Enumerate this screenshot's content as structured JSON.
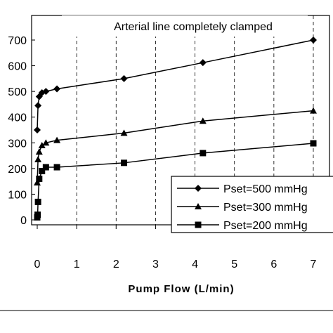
{
  "chart_data": {
    "type": "line",
    "title": "Arterial line completely clamped",
    "xlabel": "Pump Flow (L/min)",
    "ylabel": "",
    "xlim": [
      0,
      7
    ],
    "ylim": [
      0,
      700
    ],
    "xticks": [
      "0",
      "1",
      "2",
      "3",
      "4",
      "5",
      "6",
      "7"
    ],
    "yticks": [
      "0",
      "100",
      "200",
      "300",
      "400",
      "500",
      "600",
      "700"
    ],
    "grid": "vertical dashed",
    "legend_position": "right",
    "series": [
      {
        "name": "Pset=500 mmHg",
        "marker": "diamond",
        "points": [
          [
            0,
            350
          ],
          [
            0.02,
            445
          ],
          [
            0.05,
            480
          ],
          [
            0.12,
            495
          ],
          [
            0.22,
            500
          ],
          [
            0.5,
            510
          ],
          [
            2.2,
            550
          ],
          [
            4.2,
            612
          ],
          [
            7.0,
            700
          ]
        ]
      },
      {
        "name": "Pset=300 mmHg",
        "marker": "triangle",
        "points": [
          [
            0,
            145
          ],
          [
            0.02,
            235
          ],
          [
            0.05,
            265
          ],
          [
            0.12,
            290
          ],
          [
            0.22,
            300
          ],
          [
            0.5,
            310
          ],
          [
            2.2,
            338
          ],
          [
            4.2,
            385
          ],
          [
            7.0,
            425
          ]
        ]
      },
      {
        "name": "Pset=200 mmHg",
        "marker": "square",
        "points": [
          [
            0,
            10
          ],
          [
            0.01,
            20
          ],
          [
            0.02,
            70
          ],
          [
            0.05,
            160
          ],
          [
            0.12,
            190
          ],
          [
            0.22,
            205
          ],
          [
            0.5,
            205
          ],
          [
            2.2,
            222
          ],
          [
            4.2,
            260
          ],
          [
            7.0,
            298
          ]
        ]
      }
    ]
  }
}
